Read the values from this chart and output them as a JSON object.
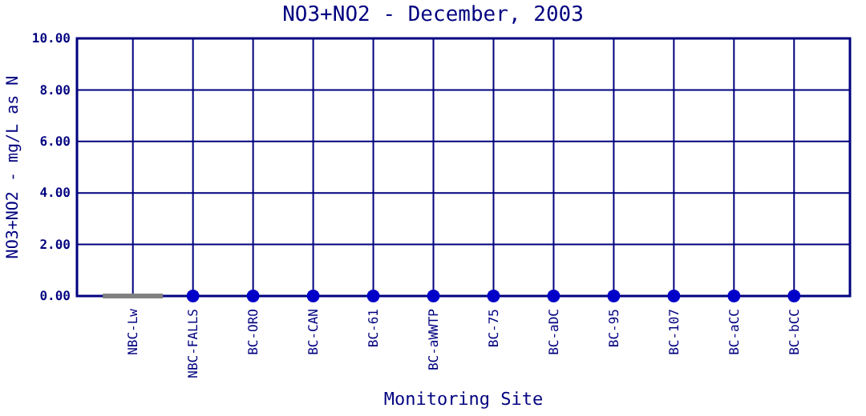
{
  "chart_data": {
    "type": "scatter",
    "title": "NO3+NO2 - December, 2003",
    "xlabel": "Monitoring Site",
    "ylabel": "NO3+NO2 - mg/L as N",
    "categories": [
      "NBC-Lw",
      "NBC-FALLS",
      "BC-ORO",
      "BC-CAN",
      "BC-61",
      "BC-aWWTP",
      "BC-75",
      "BC-aDC",
      "BC-95",
      "BC-107",
      "BC-aCC",
      "BC-bCC"
    ],
    "series": [
      {
        "type": "bar",
        "color": "#808080",
        "values": [
          0,
          null,
          null,
          null,
          null,
          null,
          null,
          null,
          null,
          null,
          null,
          null
        ]
      },
      {
        "color": "#0000c8",
        "values": [
          null,
          0,
          0,
          0,
          0,
          0,
          0,
          0,
          0,
          0,
          0,
          0
        ]
      }
    ],
    "ylim": [
      0,
      10
    ],
    "yticks": [
      {
        "value": 0,
        "label": "0.00"
      },
      {
        "value": 2,
        "label": "2.00"
      },
      {
        "value": 4,
        "label": "4.00"
      },
      {
        "value": 6,
        "label": "6.00"
      },
      {
        "value": 8,
        "label": "8.00"
      },
      {
        "value": 10,
        "label": "10.00"
      }
    ],
    "grid": true,
    "marker": "circle"
  }
}
